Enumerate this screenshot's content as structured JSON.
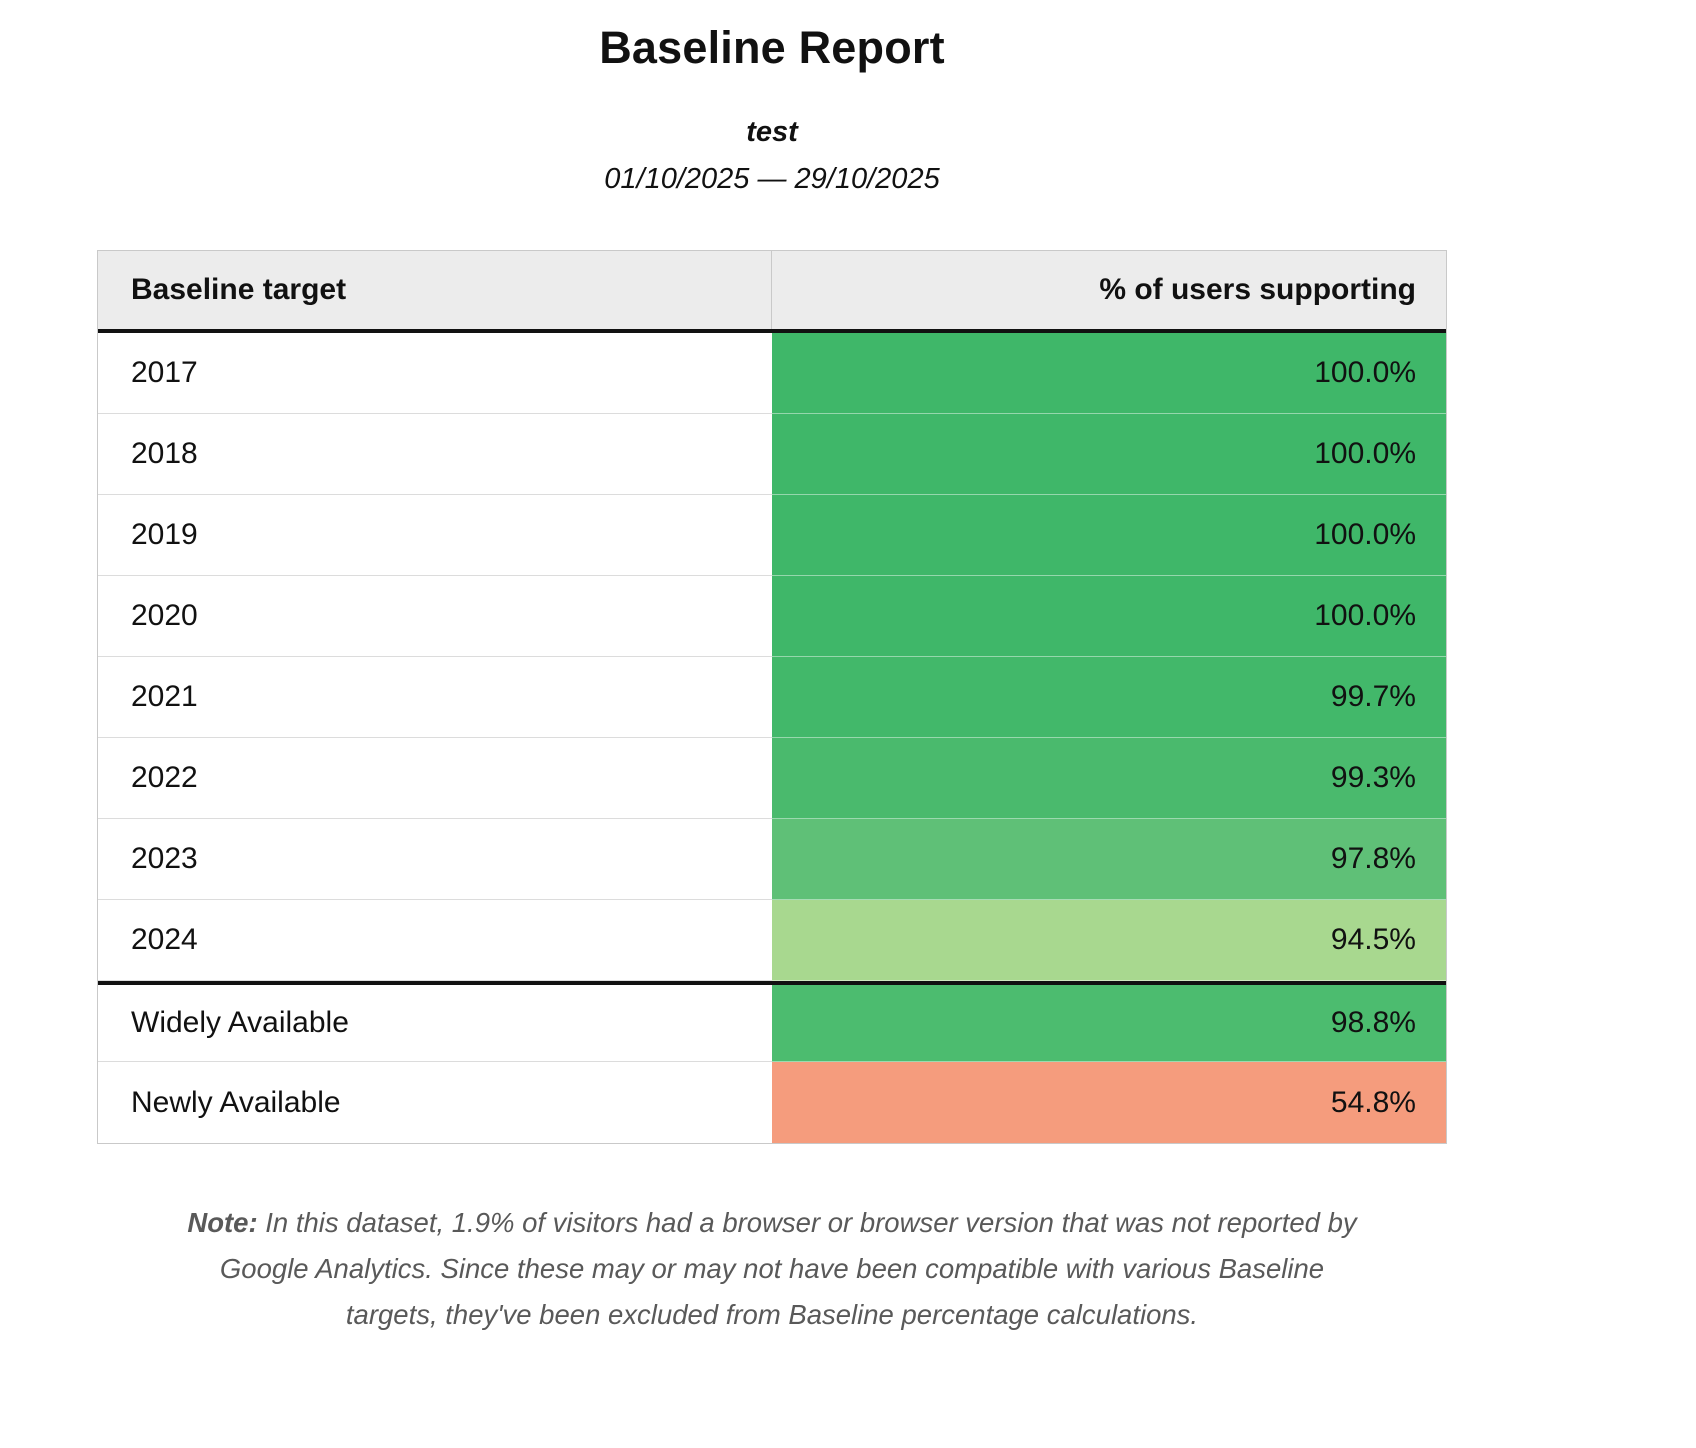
{
  "report": {
    "title": "Baseline Report",
    "subtitle": "test",
    "date_range": "01/10/2025 — 29/10/2025"
  },
  "table": {
    "columns": [
      "Baseline target",
      "% of users supporting"
    ],
    "rows": [
      {
        "target": "2017",
        "value": "100.0%",
        "color": "#3fb769"
      },
      {
        "target": "2018",
        "value": "100.0%",
        "color": "#3fb769"
      },
      {
        "target": "2019",
        "value": "100.0%",
        "color": "#3fb769"
      },
      {
        "target": "2020",
        "value": "100.0%",
        "color": "#3fb769"
      },
      {
        "target": "2021",
        "value": "99.7%",
        "color": "#42b86a"
      },
      {
        "target": "2022",
        "value": "99.3%",
        "color": "#4aba6d"
      },
      {
        "target": "2023",
        "value": "97.8%",
        "color": "#5fc077"
      },
      {
        "target": "2024",
        "value": "94.5%",
        "color": "#a8d88f"
      },
      {
        "target": "Widely Available",
        "value": "98.8%",
        "color": "#4cbc6f"
      },
      {
        "target": "Newly Available",
        "value": "54.8%",
        "color": "#f59c7d"
      }
    ]
  },
  "note": {
    "label": "Note:",
    "text": " In this dataset, 1.9% of visitors had a browser or browser version that was not reported by Google Analytics. Since these may or may not have been compatible with various Baseline targets, they've been excluded from Baseline percentage calculations."
  }
}
